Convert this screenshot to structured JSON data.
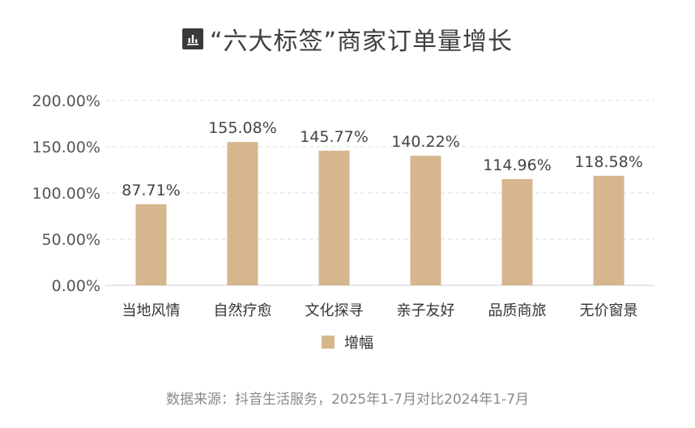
{
  "header": {
    "title": "“六大标签”商家订单量增长",
    "icon": "bar-chart-icon"
  },
  "chart_data": {
    "type": "bar",
    "categories": [
      "当地风情",
      "自然疗愈",
      "文化探寻",
      "亲子友好",
      "品质商旅",
      "无价窗景"
    ],
    "series": [
      {
        "name": "增幅",
        "values": [
          87.71,
          155.08,
          145.77,
          140.22,
          114.96,
          118.58
        ],
        "labels": [
          "87.71%",
          "155.08%",
          "145.77%",
          "140.22%",
          "114.96%",
          "118.58%"
        ]
      }
    ],
    "y_ticks": [
      "200.00%",
      "150.00%",
      "100.00%",
      "50.00%",
      "0.00%"
    ],
    "ylim": [
      0,
      200
    ],
    "grid": true,
    "legend_position": "bottom",
    "bar_color": "#d6b68d"
  },
  "footer": {
    "source": "数据来源：抖音生活服务，2025年1-7月对比2024年1-7月"
  }
}
